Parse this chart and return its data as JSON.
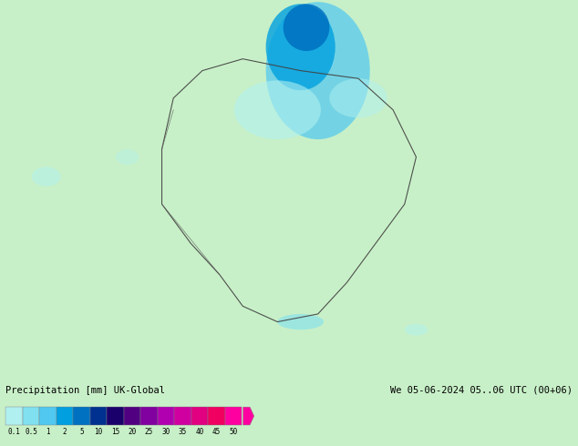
{
  "title_left": "Precipitation [mm] UK-Global",
  "title_right": "We 05-06-2024 05..06 UTC (00+06)",
  "colorbar_values": [
    0.1,
    0.5,
    1,
    2,
    5,
    10,
    15,
    20,
    25,
    30,
    35,
    40,
    45,
    50
  ],
  "colorbar_colors": [
    "#b0f0f0",
    "#80e0f0",
    "#50c8f0",
    "#00a0e0",
    "#0070c0",
    "#003090",
    "#1a006b",
    "#500080",
    "#8000a0",
    "#b000b0",
    "#d000a0",
    "#e00080",
    "#f00060",
    "#ff00a0"
  ],
  "background_color": "#c8f0c8",
  "map_bg": "#c8f0c8",
  "fig_width": 6.34,
  "fig_height": 4.9
}
